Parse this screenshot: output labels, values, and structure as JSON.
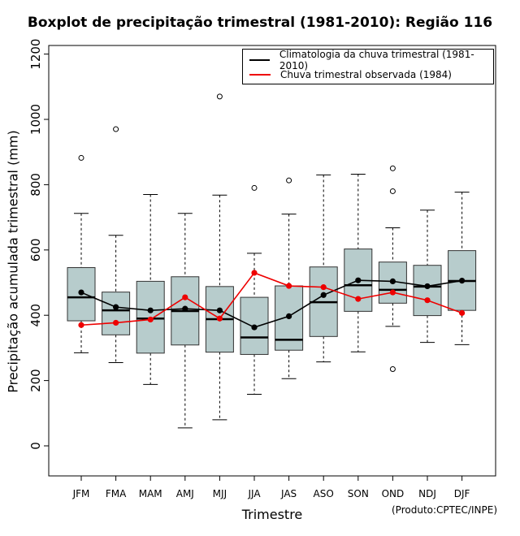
{
  "chart_data": {
    "type": "boxplot",
    "title": "Boxplot de precipitação trimestral (1981-2010): Região 116",
    "xlabel": "Trimestre",
    "ylabel": "Precipitação acumulada trimestral (mm)",
    "ylim": [
      -95,
      1225
    ],
    "yticks": [
      "0",
      "200",
      "400",
      "600",
      "800",
      "1000",
      "1200"
    ],
    "categories": [
      "JFM",
      "FMA",
      "MAM",
      "AMJ",
      "MJJ",
      "JJA",
      "JAS",
      "ASO",
      "SON",
      "OND",
      "NDJ",
      "DJF"
    ],
    "boxes": [
      {
        "whisker_low": 285,
        "q1": 383,
        "median": 455,
        "q3": 546,
        "whisker_high": 712,
        "outliers": [
          882
        ]
      },
      {
        "whisker_low": 255,
        "q1": 340,
        "median": 415,
        "q3": 471,
        "whisker_high": 645,
        "outliers": [
          970
        ]
      },
      {
        "whisker_low": 188,
        "q1": 284,
        "median": 390,
        "q3": 504,
        "whisker_high": 770,
        "outliers": []
      },
      {
        "whisker_low": 55,
        "q1": 309,
        "median": 413,
        "q3": 518,
        "whisker_high": 712,
        "outliers": []
      },
      {
        "whisker_low": 80,
        "q1": 287,
        "median": 388,
        "q3": 488,
        "whisker_high": 768,
        "outliers": [
          1070
        ]
      },
      {
        "whisker_low": 158,
        "q1": 280,
        "median": 332,
        "q3": 455,
        "whisker_high": 590,
        "outliers": [
          790
        ]
      },
      {
        "whisker_low": 206,
        "q1": 293,
        "median": 325,
        "q3": 490,
        "whisker_high": 710,
        "outliers": [
          813
        ]
      },
      {
        "whisker_low": 257,
        "q1": 335,
        "median": 440,
        "q3": 548,
        "whisker_high": 830,
        "outliers": []
      },
      {
        "whisker_low": 288,
        "q1": 412,
        "median": 492,
        "q3": 603,
        "whisker_high": 832,
        "outliers": []
      },
      {
        "whisker_low": 366,
        "q1": 437,
        "median": 478,
        "q3": 563,
        "whisker_high": 668,
        "outliers": [
          850,
          780,
          235
        ]
      },
      {
        "whisker_low": 317,
        "q1": 399,
        "median": 488,
        "q3": 553,
        "whisker_high": 722,
        "outliers": []
      },
      {
        "whisker_low": 310,
        "q1": 415,
        "median": 505,
        "q3": 598,
        "whisker_high": 777,
        "outliers": []
      }
    ],
    "series": [
      {
        "name": "Climatologia da chuva trimestral (1981-2010)",
        "color": "#000000",
        "values": [
          470,
          425,
          415,
          420,
          415,
          363,
          397,
          462,
          507,
          504,
          489,
          506
        ]
      },
      {
        "name": "Chuva trimestral observada (1984)",
        "color": "#ee0000",
        "values": [
          370,
          377,
          387,
          455,
          390,
          530,
          490,
          486,
          450,
          470,
          446,
          407
        ]
      }
    ],
    "box_fill": "#b7cccc",
    "legend_position": "top-right",
    "credit": "(Produto:CPTEC/INPE)"
  }
}
